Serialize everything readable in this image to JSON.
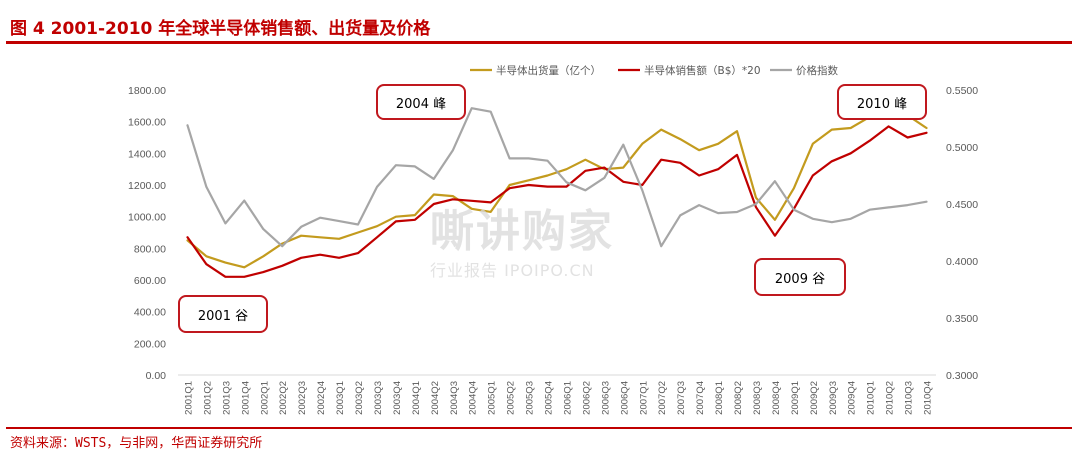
{
  "figure": {
    "title": "图 4   2001-2010 年全球半导体销售额、出货量及价格",
    "source": "资料来源：WSTS，与非网，华西证券研究所"
  },
  "watermark": {
    "main": "嘶讲购家",
    "sub": "行业报告 IPOIPO.CN"
  },
  "annotations": [
    {
      "id": "2004",
      "text": "2004 峰"
    },
    {
      "id": "2010",
      "text": "2010 峰"
    },
    {
      "id": "2001",
      "text": "2001 谷"
    },
    {
      "id": "2009",
      "text": "2009 谷"
    }
  ],
  "colors": {
    "title": "#c00000",
    "shipments": "#c39b1e",
    "sales": "#c00000",
    "price": "#a6a6a6",
    "axis": "#d9d9d9",
    "box": "#c0181e"
  },
  "chart_data": {
    "type": "line",
    "legend_position": "top",
    "grid": false,
    "categories": [
      "2001Q1",
      "2001Q2",
      "2001Q3",
      "2001Q4",
      "2002Q1",
      "2002Q2",
      "2002Q3",
      "2002Q4",
      "2003Q1",
      "2003Q2",
      "2003Q3",
      "2003Q4",
      "2004Q1",
      "2004Q2",
      "2004Q3",
      "2004Q4",
      "2005Q1",
      "2005Q2",
      "2005Q3",
      "2005Q4",
      "2006Q1",
      "2006Q2",
      "2006Q3",
      "2006Q4",
      "2007Q1",
      "2007Q2",
      "2007Q3",
      "2007Q4",
      "2008Q1",
      "2008Q2",
      "2008Q3",
      "2008Q4",
      "2009Q1",
      "2009Q2",
      "2009Q3",
      "2009Q4",
      "2010Q1",
      "2010Q2",
      "2010Q3",
      "2010Q4"
    ],
    "y_left": {
      "min": 0,
      "max": 1800,
      "ticks": [
        "0.00",
        "200.00",
        "400.00",
        "600.00",
        "800.00",
        "1000.00",
        "1200.00",
        "1400.00",
        "1600.00",
        "1800.00"
      ]
    },
    "y_right": {
      "min": 0.3,
      "max": 0.55,
      "ticks": [
        "0.3000",
        "0.3500",
        "0.4000",
        "0.4500",
        "0.5000",
        "0.5500"
      ]
    },
    "series": [
      {
        "name": "半导体出货量（亿个）",
        "axis": "left",
        "values": [
          850,
          750,
          710,
          680,
          750,
          830,
          880,
          870,
          860,
          900,
          940,
          1000,
          1010,
          1140,
          1130,
          1050,
          1030,
          1200,
          1230,
          1260,
          1300,
          1360,
          1300,
          1310,
          1460,
          1550,
          1490,
          1420,
          1460,
          1540,
          1120,
          980,
          1180,
          1460,
          1550,
          1560,
          1630,
          1750,
          1640,
          1560
        ]
      },
      {
        "name": "半导体销售额（B$）*20",
        "axis": "left",
        "values": [
          870,
          700,
          620,
          620,
          650,
          690,
          740,
          760,
          740,
          770,
          870,
          970,
          980,
          1080,
          1110,
          1100,
          1090,
          1180,
          1200,
          1190,
          1190,
          1290,
          1310,
          1220,
          1200,
          1360,
          1340,
          1260,
          1300,
          1390,
          1060,
          880,
          1050,
          1260,
          1350,
          1400,
          1480,
          1570,
          1500,
          1530
        ]
      },
      {
        "name": "价格指数",
        "axis": "right",
        "values": [
          0.519,
          0.465,
          0.433,
          0.453,
          0.428,
          0.413,
          0.43,
          0.438,
          0.435,
          0.432,
          0.465,
          0.484,
          0.483,
          0.472,
          0.497,
          0.534,
          0.531,
          0.49,
          0.49,
          0.488,
          0.469,
          0.462,
          0.473,
          0.502,
          0.462,
          0.413,
          0.44,
          0.449,
          0.442,
          0.443,
          0.45,
          0.47,
          0.445,
          0.437,
          0.434,
          0.437,
          0.445,
          0.447,
          0.449,
          0.452
        ]
      }
    ]
  }
}
